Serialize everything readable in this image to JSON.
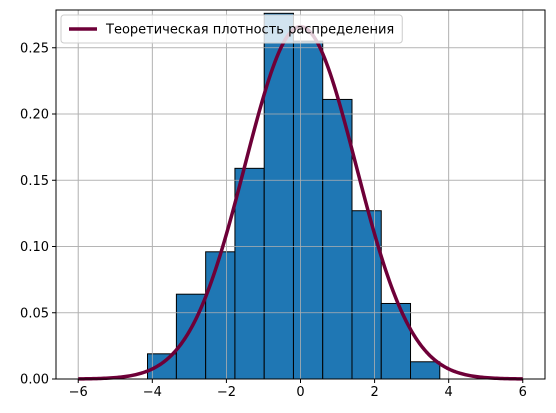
{
  "chart_data": {
    "type": "bar",
    "title": "",
    "xlabel": "",
    "ylabel": "",
    "xlim": [
      -6.6,
      6.6
    ],
    "ylim": [
      0.0,
      0.2785
    ],
    "grid": true,
    "legend_placement": "top-left",
    "x_ticks": [
      {
        "value": -6,
        "label": "−6"
      },
      {
        "value": -4,
        "label": "−4"
      },
      {
        "value": -2,
        "label": "−2"
      },
      {
        "value": 0,
        "label": "0"
      },
      {
        "value": 2,
        "label": "2"
      },
      {
        "value": 4,
        "label": "4"
      },
      {
        "value": 6,
        "label": "6"
      }
    ],
    "y_ticks": [
      {
        "value": 0.0,
        "label": "0.00"
      },
      {
        "value": 0.05,
        "label": "0.05"
      },
      {
        "value": 0.1,
        "label": "0.10"
      },
      {
        "value": 0.15,
        "label": "0.15"
      },
      {
        "value": 0.2,
        "label": "0.20"
      },
      {
        "value": 0.25,
        "label": "0.25"
      }
    ],
    "histogram": {
      "bin_edges": [
        -4.13,
        -3.35,
        -2.56,
        -1.77,
        -0.98,
        -0.19,
        0.6,
        1.39,
        2.18,
        2.97,
        3.76
      ],
      "values": [
        0.019,
        0.064,
        0.096,
        0.159,
        0.276,
        0.255,
        0.211,
        0.127,
        0.057,
        0.013
      ],
      "color": "#1f77b4",
      "edge_color": "#000000"
    },
    "series": [
      {
        "name": "Теоретическая плотность распределения",
        "type": "line",
        "distribution": "normal",
        "mean": 0.0,
        "std": 1.5,
        "x_range": [
          -6,
          6
        ],
        "color": "#6e0038"
      }
    ]
  }
}
